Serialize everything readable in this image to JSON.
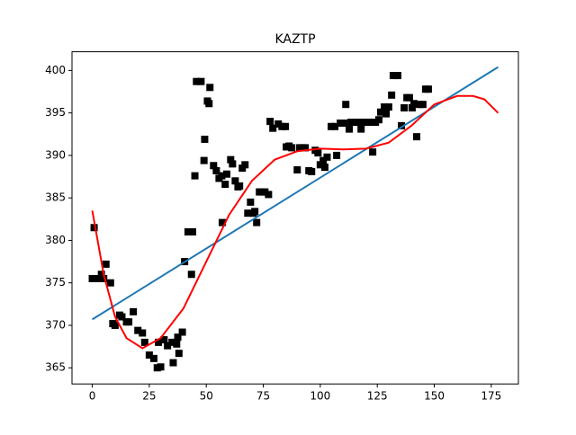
{
  "chart_data": {
    "type": "scatter",
    "title": "KAZTP",
    "xlim": [
      -8.9,
      186.9
    ],
    "ylim": [
      363.1,
      402.2
    ],
    "xticks": [
      0,
      25,
      50,
      75,
      100,
      125,
      150,
      175
    ],
    "yticks": [
      365,
      370,
      375,
      380,
      385,
      390,
      395,
      400
    ],
    "series": [
      {
        "type": "scatter",
        "color": "#000000",
        "x": [
          0.8,
          0,
          2,
          4,
          5,
          6,
          8,
          9,
          10,
          12,
          13,
          15,
          16,
          18,
          20,
          22,
          23,
          25,
          27,
          28.5,
          30,
          29,
          31.5,
          33,
          35,
          35.5,
          37,
          38,
          37.5,
          39.5,
          40.5,
          42,
          44,
          43.5,
          45,
          45.7,
          47.7,
          49,
          49.3,
          50.5,
          51.6,
          51.2,
          53.2,
          54.4,
          55.6,
          56.8,
          57,
          58.3,
          59,
          60.7,
          61.5,
          62.7,
          63.9,
          64.6,
          65.8,
          67,
          68.2,
          69.4,
          70.6,
          71.3,
          72.1,
          73.3,
          74.5,
          75.7,
          77.3,
          78,
          79.2,
          81.6,
          83.2,
          84.7,
          85.1,
          86.3,
          87.5,
          89.9,
          91,
          92.2,
          93.4,
          95,
          96.2,
          97.8,
          99,
          100,
          101.3,
          102,
          103,
          104.8,
          106.4,
          107.2,
          108.8,
          110.4,
          111.2,
          112.7,
          113.5,
          115,
          116.7,
          117.9,
          119,
          120.6,
          122.2,
          123,
          124.2,
          125.7,
          126.5,
          128.1,
          128.9,
          130,
          131.3,
          132,
          134,
          135.6,
          136.8,
          138,
          139.1,
          140.3,
          141.1,
          142.3,
          143.5,
          145,
          146.2,
          147.4
        ],
        "values": [
          381.5,
          375.5,
          375.5,
          376,
          375.5,
          377.2,
          375,
          370.2,
          370,
          371.2,
          371,
          370.4,
          370.4,
          371.6,
          369.4,
          369.1,
          368,
          366.5,
          366.1,
          365,
          365.1,
          368,
          368.3,
          367.6,
          368,
          365.6,
          367.8,
          366.7,
          368.6,
          369.2,
          377.5,
          381,
          381,
          376,
          387.6,
          398.7,
          398.7,
          389.4,
          391.9,
          396.4,
          398,
          396.1,
          388.8,
          388.2,
          387.3,
          387.6,
          382.1,
          386.6,
          387.8,
          389.5,
          389,
          387,
          386.3,
          386.4,
          388.5,
          388.9,
          383.2,
          384.5,
          383.2,
          383.4,
          382.1,
          385.7,
          385.7,
          385.7,
          385.4,
          394,
          393.2,
          393.7,
          393.4,
          393.4,
          391,
          391.1,
          390.9,
          388.3,
          390.9,
          390.9,
          390.9,
          388.2,
          388.1,
          390.6,
          390.3,
          388.9,
          389.4,
          388.6,
          389.8,
          393.4,
          393.4,
          390,
          393.8,
          393.8,
          396,
          393.1,
          393.9,
          393.9,
          393.9,
          393.1,
          393.9,
          393.9,
          393.9,
          390.4,
          393.9,
          394.2,
          395.1,
          395.7,
          394.9,
          395.7,
          397.1,
          399.4,
          399.4,
          393.5,
          395.6,
          396.8,
          396.8,
          395.6,
          396.1,
          392.2,
          396,
          396,
          397.8,
          397.8
        ]
      },
      {
        "type": "line",
        "color": "#1f77b4",
        "x": [
          0,
          178
        ],
        "values": [
          370.7,
          400.4
        ]
      },
      {
        "type": "line",
        "color": "#ff0000",
        "x": [
          0,
          5,
          10,
          15,
          22,
          30,
          40,
          50,
          60,
          70,
          80,
          90,
          100,
          110,
          120,
          130,
          140,
          150,
          160,
          167,
          172,
          178
        ],
        "values": [
          383.5,
          376,
          371,
          368.5,
          367.3,
          368.5,
          372,
          377.5,
          383,
          387,
          389.5,
          390.5,
          390.8,
          390.7,
          390.8,
          391.5,
          393.5,
          396,
          397,
          397,
          396.6,
          395
        ]
      }
    ]
  }
}
